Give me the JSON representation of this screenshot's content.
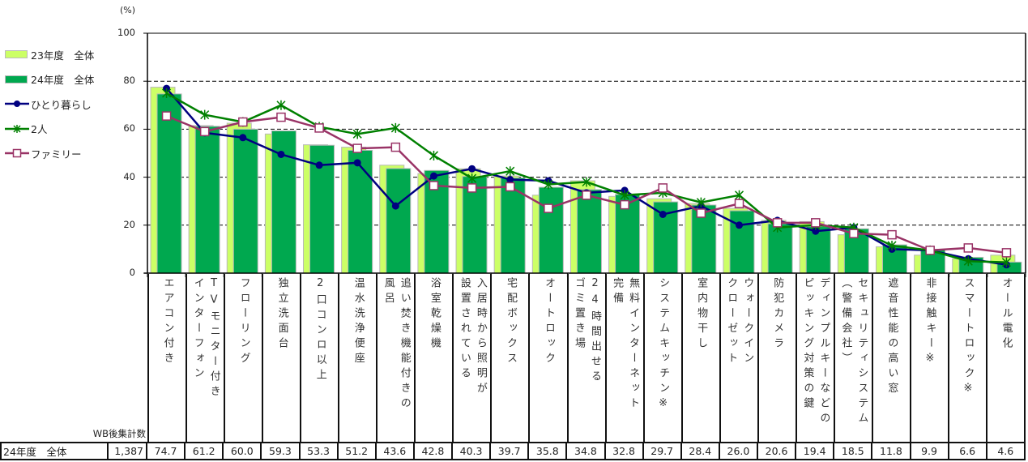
{
  "unit_label": "(%)",
  "y_ticks": [
    "100",
    "80",
    "60",
    "40",
    "20",
    "0"
  ],
  "legend": [
    {
      "label": "23年度　全体",
      "type": "bar",
      "color": "#ccff66"
    },
    {
      "label": "24年度　全体",
      "type": "bar",
      "color": "#00a84f"
    },
    {
      "label": "ひとり暮らし",
      "type": "line",
      "color": "#000080",
      "marker": "circle"
    },
    {
      "label": "2人",
      "type": "line",
      "color": "#008000",
      "marker": "asterisk"
    },
    {
      "label": "ファミリー",
      "type": "line",
      "color": "#993366",
      "marker": "square"
    }
  ],
  "categories": [
    {
      "cols": [
        "エアコン付き"
      ]
    },
    {
      "cols": [
        "TVモニター付き",
        "インターフォン"
      ]
    },
    {
      "cols": [
        "フローリング"
      ]
    },
    {
      "cols": [
        "独立洗面台"
      ]
    },
    {
      "cols": [
        "2口コンロ以上"
      ]
    },
    {
      "cols": [
        "温水洗浄便座"
      ]
    },
    {
      "cols": [
        "追い焚き機能付きの",
        "風呂"
      ]
    },
    {
      "cols": [
        "浴室乾燥機"
      ]
    },
    {
      "cols": [
        "入居時から照明が",
        "設置されている"
      ]
    },
    {
      "cols": [
        "宅配ボックス"
      ]
    },
    {
      "cols": [
        "オートロック"
      ]
    },
    {
      "cols": [
        "24時間出せる",
        "ゴミ置き場"
      ]
    },
    {
      "cols": [
        "無料インターネット",
        "完備"
      ]
    },
    {
      "cols": [
        "システムキッチン※"
      ]
    },
    {
      "cols": [
        "室内物干し"
      ]
    },
    {
      "cols": [
        "ウォークイン",
        "クローゼット"
      ]
    },
    {
      "cols": [
        "防犯カメラ"
      ]
    },
    {
      "cols": [
        "ディンプルキーなどの",
        "ピッキング対策の鍵"
      ]
    },
    {
      "cols": [
        "セキュリティシステム",
        "（警備会社）"
      ]
    },
    {
      "cols": [
        "遮音性能の高い窓"
      ]
    },
    {
      "cols": [
        "非接触キー※"
      ]
    },
    {
      "cols": [
        "スマートロック※"
      ]
    },
    {
      "cols": [
        "オール電化"
      ]
    }
  ],
  "table": {
    "n_header": "WB後集計数",
    "row_label": "24年度　全体",
    "n": "1,387",
    "values": [
      "74.7",
      "61.2",
      "60.0",
      "59.3",
      "53.3",
      "51.2",
      "43.6",
      "42.8",
      "40.3",
      "39.7",
      "35.8",
      "34.8",
      "32.8",
      "29.7",
      "28.4",
      "26.0",
      "20.6",
      "19.4",
      "18.5",
      "11.8",
      "9.9",
      "6.6",
      "4.6"
    ]
  },
  "chart_data": {
    "type": "bar",
    "title": "",
    "xlabel": "",
    "ylabel": "(%)",
    "ylim": [
      0,
      100
    ],
    "yticks": [
      0,
      20,
      40,
      60,
      80,
      100
    ],
    "grid": "dashed horizontal at 20, 60, 80, 100",
    "legend_position": "left",
    "categories": [
      "エアコン付き",
      "TVモニター付きインターフォン",
      "フローリング",
      "独立洗面台",
      "2口コンロ以上",
      "温水洗浄便座",
      "追い焚き機能付きの風呂",
      "浴室乾燥機",
      "入居時から照明が設置されている",
      "宅配ボックス",
      "オートロック",
      "24時間出せるゴミ置き場",
      "無料インターネット完備",
      "システムキッチン※",
      "室内物干し",
      "ウォークインクローゼット",
      "防犯カメラ",
      "ディンプルキーなどのピッキング対策の鍵",
      "セキュリティシステム（警備会社）",
      "遮音性能の高い窓",
      "非接触キー※",
      "スマートロック※",
      "オール電化"
    ],
    "series": [
      {
        "name": "23年度　全体",
        "type": "bar",
        "color": "#ccff66",
        "values": [
          77.5,
          61.5,
          62.5,
          58.0,
          53.5,
          52.5,
          45.0,
          41.5,
          43.5,
          40.5,
          32.5,
          38.5,
          32.0,
          31.0,
          29.0,
          27.0,
          22.0,
          21.5,
          16.0,
          11.0,
          7.5,
          6.0,
          7.5
        ]
      },
      {
        "name": "24年度　全体",
        "type": "bar",
        "color": "#00a84f",
        "values": [
          74.7,
          61.2,
          60.0,
          59.3,
          53.3,
          51.2,
          43.6,
          42.8,
          40.3,
          39.7,
          35.8,
          34.8,
          32.8,
          29.7,
          28.4,
          26.0,
          20.6,
          19.4,
          18.5,
          11.8,
          9.9,
          6.6,
          4.6
        ]
      },
      {
        "name": "ひとり暮らし",
        "type": "line",
        "color": "#000080",
        "values": [
          77.0,
          58.5,
          56.5,
          49.5,
          45.0,
          46.0,
          28.0,
          40.5,
          43.5,
          39.0,
          38.5,
          33.5,
          34.5,
          24.5,
          28.0,
          20.0,
          22.0,
          17.5,
          19.0,
          10.0,
          9.5,
          6.0,
          3.5
        ]
      },
      {
        "name": "2人",
        "type": "line",
        "color": "#008000",
        "values": [
          75.0,
          66.0,
          63.0,
          70.0,
          61.0,
          58.0,
          60.5,
          49.0,
          39.5,
          42.5,
          37.0,
          38.0,
          32.5,
          33.5,
          29.5,
          32.5,
          19.0,
          20.0,
          19.0,
          11.5,
          9.5,
          5.0,
          4.5
        ]
      },
      {
        "name": "ファミリー",
        "type": "line",
        "color": "#993366",
        "values": [
          65.5,
          59.0,
          63.0,
          65.0,
          60.5,
          52.0,
          52.5,
          36.5,
          35.5,
          36.0,
          27.0,
          32.5,
          28.5,
          35.5,
          25.0,
          29.0,
          21.0,
          21.0,
          16.5,
          16.0,
          9.5,
          10.5,
          8.5
        ]
      }
    ]
  }
}
